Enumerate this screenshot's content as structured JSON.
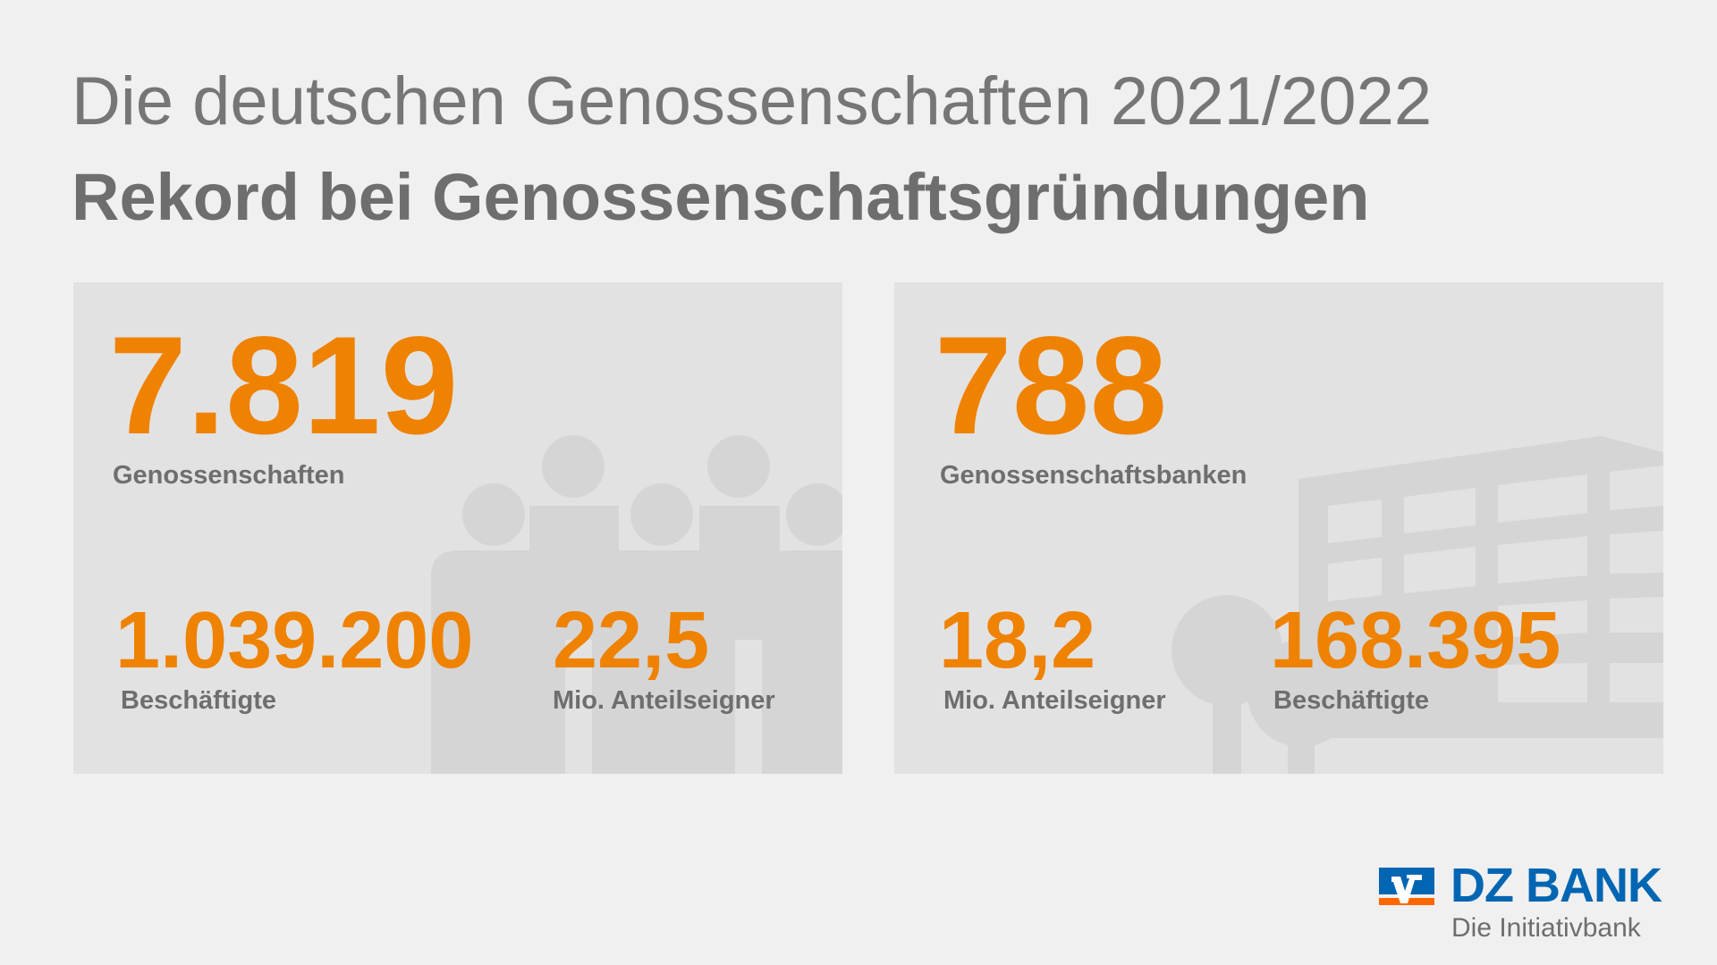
{
  "header": {
    "title": "Die deutschen Genossenschaften 2021/2022",
    "subtitle": "Rekord bei Genossenschaftsgründungen"
  },
  "left_panel": {
    "main_value": "7.819",
    "main_label": "Genossenschaften",
    "stats": [
      {
        "value": "1.039.200",
        "label": "Beschäftigte"
      },
      {
        "value": "22,5",
        "label": "Mio. Anteilseigner"
      }
    ]
  },
  "right_panel": {
    "main_value": "788",
    "main_label": "Genossenschaftsbanken",
    "stats": [
      {
        "value": "18,2",
        "label": "Mio. Anteilseigner"
      },
      {
        "value": "168.395",
        "label": "Beschäftigte"
      }
    ]
  },
  "logo": {
    "name": "DZ BANK",
    "tagline": "Die Initiativbank"
  },
  "colors": {
    "accent": "#ef8200",
    "brand": "#0066b3",
    "text": "#6e6e6e"
  }
}
